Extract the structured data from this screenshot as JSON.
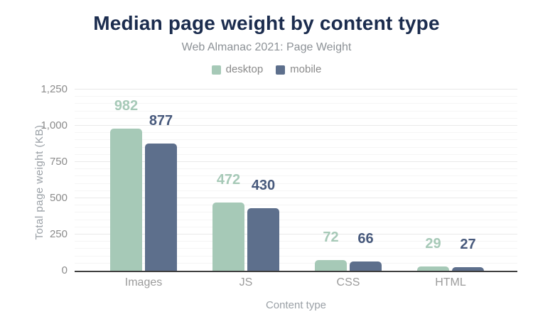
{
  "chart_data": {
    "type": "bar",
    "title": "Median page weight by content type",
    "subtitle": "Web Almanac 2021: Page Weight",
    "xlabel": "Content type",
    "ylabel": "Total page weight (KB)",
    "categories": [
      "Images",
      "JS",
      "CSS",
      "HTML"
    ],
    "series": [
      {
        "name": "desktop",
        "color": "#a6c9b7",
        "label_color": "#a6c9b7",
        "values": [
          982,
          472,
          72,
          29
        ]
      },
      {
        "name": "mobile",
        "color": "#5d6f8c",
        "label_color": "#47597c",
        "values": [
          877,
          430,
          66,
          27
        ]
      }
    ],
    "ylim": [
      0,
      1250
    ],
    "yticks": [
      {
        "value": 0,
        "label": "0"
      },
      {
        "value": 250,
        "label": "250"
      },
      {
        "value": 500,
        "label": "500"
      },
      {
        "value": 750,
        "label": "750"
      },
      {
        "value": 1000,
        "label": "1,000"
      },
      {
        "value": 1250,
        "label": "1,250"
      }
    ],
    "grid": {
      "minor_step": 50,
      "major_step": 250,
      "on": true
    },
    "legend_position": "top"
  },
  "colors": {
    "title_text": "#1b2c4e",
    "subtitle_text": "#8c9196",
    "tick_text": "#8b8b8b",
    "category_text": "#9b9b9b",
    "axis_title_text": "#9aa0a6",
    "axis_line": "#3f3f3f",
    "gridline_major": "#e9e9e9",
    "gridline_minor": "#f5f5f5",
    "background": "#ffffff"
  }
}
